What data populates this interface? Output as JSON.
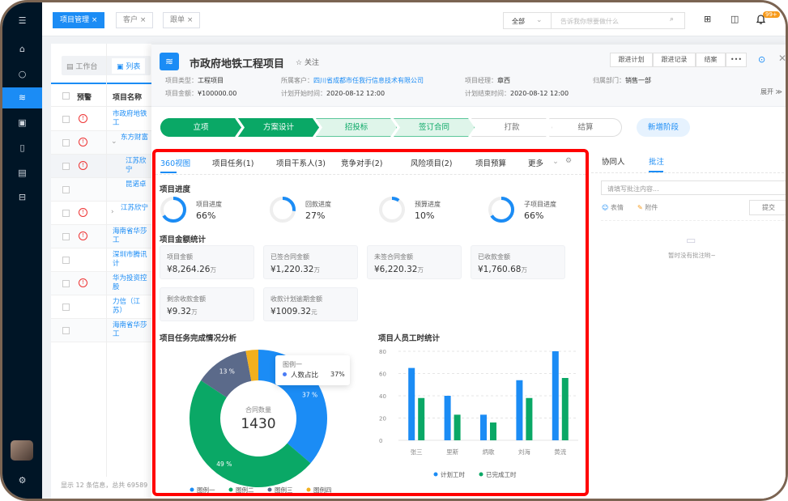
{
  "nav": {
    "tabs": [
      {
        "label": "项目管理"
      },
      {
        "label": "客户"
      },
      {
        "label": "跟单"
      }
    ],
    "search": {
      "scope": "全部",
      "placeholder": "告诉我你想要做什么"
    },
    "badge": "99+"
  },
  "list": {
    "views": [
      "工作台",
      "列表"
    ],
    "headers": [
      "预警",
      "项目名称"
    ],
    "rows": [
      {
        "name": "市政府地铁工",
        "warn": true
      },
      {
        "name": "东方财富",
        "warn": true,
        "expand": "v"
      },
      {
        "name": "江苏欣宁",
        "warn": true
      },
      {
        "name": "昆诺卓",
        "warn": false
      },
      {
        "name": "江苏欣宁",
        "warn": true,
        "expand": ">"
      },
      {
        "name": "海南省华莎工",
        "warn": true
      },
      {
        "name": "深圳市腾讯计",
        "warn": false
      },
      {
        "name": "华为投资控股",
        "warn": true
      },
      {
        "name": "力信（江苏）",
        "warn": false
      },
      {
        "name": "海南省华莎工",
        "warn": false
      }
    ],
    "footer": "显示 12 条信息，总共 69589"
  },
  "project": {
    "title": "市政府地铁工程项目",
    "follow": "关注",
    "meta": [
      {
        "k": "项目类型：",
        "v": "工程项目"
      },
      {
        "k": "所属客户：",
        "v": "四川省成都市任我行信息技术有限公司"
      },
      {
        "k": "项目经理：",
        "v": "章西"
      },
      {
        "k": "归属部门：",
        "v": "销售一部"
      },
      {
        "k": "项目金额：",
        "v": "¥100000.00"
      },
      {
        "k": "计划开始时间：",
        "v": "2020-08-12  12:00"
      },
      {
        "k": "计划结束时间：",
        "v": "2020-08-12  12:00"
      }
    ],
    "actions": [
      "跟进计划",
      "跟进记录",
      "结案",
      "•••"
    ],
    "expand": "展开",
    "stages": [
      "立项",
      "方案设计",
      "招投标",
      "签订合同",
      "打款",
      "结算"
    ],
    "add_stage": "新增阶段"
  },
  "tabs": [
    "360视图",
    "项目任务(1)",
    "项目干系人(3)",
    "竞争对手(2)",
    "风险项目(2)",
    "项目预算",
    "更多"
  ],
  "progress": {
    "title": "项目进度",
    "items": [
      {
        "label": "项目进度",
        "value": 66
      },
      {
        "label": "回款进度",
        "value": 27
      },
      {
        "label": "预算进度",
        "value": 10
      },
      {
        "label": "子项目进度",
        "value": 66
      }
    ]
  },
  "amounts": {
    "title": "项目金额统计",
    "items": [
      {
        "label": "项目金额",
        "value": "¥8,264.26",
        "unit": "万"
      },
      {
        "label": "已签合同金额",
        "value": "¥1,220.32",
        "unit": "万"
      },
      {
        "label": "未签合同金额",
        "value": "¥6,220.32",
        "unit": "万"
      },
      {
        "label": "已收款金额",
        "value": "¥1,760.68",
        "unit": "万"
      },
      {
        "label": "剩余收款金额",
        "value": "¥9.32",
        "unit": "万"
      },
      {
        "label": "收款计划逾期金额",
        "value": "¥1009.32",
        "unit": "元"
      }
    ]
  },
  "chart_data": [
    {
      "type": "pie",
      "title": "项目任务完成情况分析",
      "center_label": "合同数量",
      "center_value": "1430",
      "slices": [
        {
          "name": "图例一",
          "value": 37,
          "label": "37 %",
          "color": "#1b8cf5"
        },
        {
          "name": "图例二",
          "value": 49,
          "label": "49 %",
          "color": "#0aa866"
        },
        {
          "name": "图例三",
          "value": 13,
          "label": "13 %",
          "color": "#5b6a8a"
        },
        {
          "name": "图例四",
          "value": 3,
          "color": "#f2b01e"
        }
      ],
      "tooltip": {
        "title": "图例一",
        "name": "人数占比",
        "value": "37%"
      }
    },
    {
      "type": "bar",
      "title": "项目人员工时统计",
      "categories": [
        "张三",
        "里斯",
        "炳歌",
        "刘海",
        "黄流"
      ],
      "ylim": [
        0,
        80
      ],
      "yticks": [
        0,
        20,
        40,
        60,
        80
      ],
      "grid": true,
      "legend": "bottom",
      "series": [
        {
          "name": "计划工时",
          "values": [
            65,
            40,
            23,
            54,
            80
          ],
          "color": "#1b8cf5"
        },
        {
          "name": "已完成工时",
          "values": [
            38,
            23,
            16,
            38,
            56
          ],
          "color": "#0aa866"
        }
      ]
    }
  ],
  "side": {
    "tabs": [
      "协同人",
      "批注"
    ],
    "placeholder": "请填写批注内容...",
    "emoji": "表情",
    "attach": "附件",
    "submit": "提交",
    "empty": "暂时没有批注哟~"
  }
}
